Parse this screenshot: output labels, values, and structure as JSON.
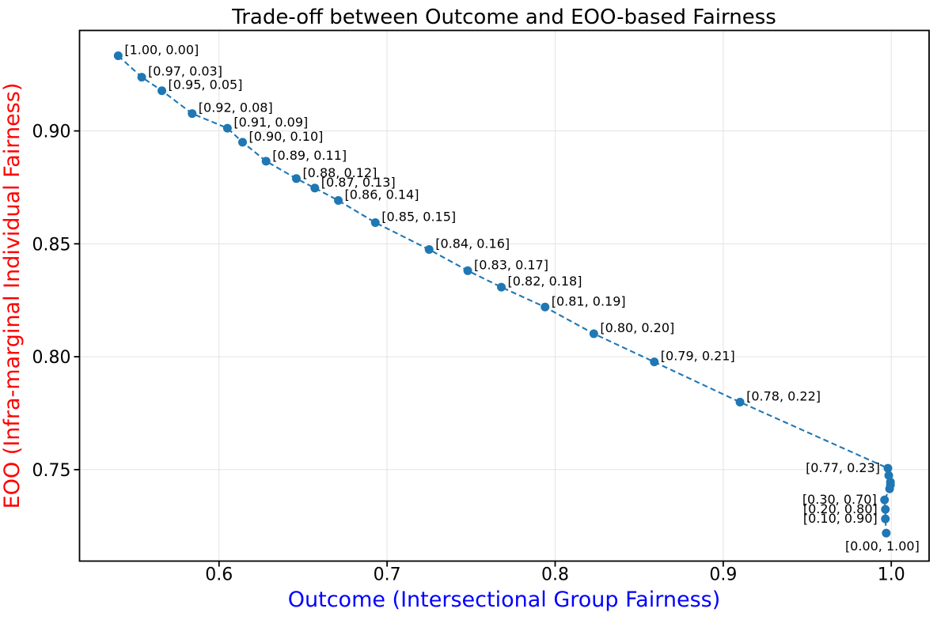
{
  "chart_data": {
    "type": "line",
    "title": "Trade-off between Outcome and EOO-based Fairness",
    "xlabel": "Outcome (Intersectional Group Fairness)",
    "ylabel": "EOO (Infra-marginal Individual Fairness)",
    "line_style": "dashed",
    "marker": "circle",
    "grid": true,
    "legend": "none",
    "xlim": [
      0.517,
      1.0225
    ],
    "ylim": [
      0.7095,
      0.9445
    ],
    "xticks": [
      {
        "value": 0.6,
        "label": "0.6"
      },
      {
        "value": 0.7,
        "label": "0.7"
      },
      {
        "value": 0.8,
        "label": "0.8"
      },
      {
        "value": 0.9,
        "label": "0.9"
      },
      {
        "value": 1.0,
        "label": "1.0"
      }
    ],
    "yticks": [
      {
        "value": 0.75,
        "label": "0.75"
      },
      {
        "value": 0.8,
        "label": "0.80"
      },
      {
        "value": 0.85,
        "label": "0.85"
      },
      {
        "value": 0.9,
        "label": "0.90"
      }
    ],
    "colors": {
      "series": "#1f77b4",
      "title": "#000000",
      "xlabel": "#0000ff",
      "ylabel": "#ff0000",
      "grid": "#e5e5e5",
      "axis": "#000000",
      "tick_labels": "#000000",
      "annotations": "#000000"
    },
    "points": [
      {
        "x": 0.54,
        "y": 0.9333,
        "label": "[1.00, 0.00]",
        "label_side": "right"
      },
      {
        "x": 0.554,
        "y": 0.9238,
        "label": "[0.97, 0.03]",
        "label_side": "right"
      },
      {
        "x": 0.566,
        "y": 0.9178,
        "label": "[0.95, 0.05]",
        "label_side": "right"
      },
      {
        "x": 0.584,
        "y": 0.9077,
        "label": "[0.92, 0.08]",
        "label_side": "right"
      },
      {
        "x": 0.605,
        "y": 0.9012,
        "label": "[0.91, 0.09]",
        "label_side": "right"
      },
      {
        "x": 0.614,
        "y": 0.895,
        "label": "[0.90, 0.10]",
        "label_side": "right"
      },
      {
        "x": 0.628,
        "y": 0.8866,
        "label": "[0.89, 0.11]",
        "label_side": "right"
      },
      {
        "x": 0.646,
        "y": 0.8789,
        "label": "[0.88, 0.12]",
        "label_side": "right"
      },
      {
        "x": 0.657,
        "y": 0.8747,
        "label": "[0.87, 0.13]",
        "label_side": "right"
      },
      {
        "x": 0.671,
        "y": 0.8692,
        "label": "[0.86, 0.14]",
        "label_side": "right"
      },
      {
        "x": 0.693,
        "y": 0.8594,
        "label": "[0.85, 0.15]",
        "label_side": "right"
      },
      {
        "x": 0.725,
        "y": 0.8475,
        "label": "[0.84, 0.16]",
        "label_side": "right"
      },
      {
        "x": 0.748,
        "y": 0.8381,
        "label": "[0.83, 0.17]",
        "label_side": "right"
      },
      {
        "x": 0.768,
        "y": 0.8308,
        "label": "[0.82, 0.18]",
        "label_side": "right"
      },
      {
        "x": 0.794,
        "y": 0.822,
        "label": "[0.81, 0.19]",
        "label_side": "right"
      },
      {
        "x": 0.823,
        "y": 0.8102,
        "label": "[0.80, 0.20]",
        "label_side": "right"
      },
      {
        "x": 0.859,
        "y": 0.7977,
        "label": "[0.79, 0.21]",
        "label_side": "right"
      },
      {
        "x": 0.91,
        "y": 0.7799,
        "label": "[0.78, 0.22]",
        "label_side": "right"
      },
      {
        "x": 0.998,
        "y": 0.7506,
        "label": "[0.77, 0.23]",
        "label_side": "left"
      },
      {
        "x": 0.9985,
        "y": 0.7474,
        "label": "",
        "label_side": "none"
      },
      {
        "x": 0.9995,
        "y": 0.7445,
        "label": "",
        "label_side": "none"
      },
      {
        "x": 0.9995,
        "y": 0.7432,
        "label": "",
        "label_side": "none"
      },
      {
        "x": 0.999,
        "y": 0.7415,
        "label": "",
        "label_side": "none"
      },
      {
        "x": 0.996,
        "y": 0.7366,
        "label": "[0.30, 0.70]",
        "label_side": "left"
      },
      {
        "x": 0.9965,
        "y": 0.7324,
        "label": "[0.20, 0.80]",
        "label_side": "left"
      },
      {
        "x": 0.9965,
        "y": 0.7282,
        "label": "[0.10, 0.90]",
        "label_side": "left"
      },
      {
        "x": 0.997,
        "y": 0.7219,
        "label": "[0.00, 1.00]",
        "label_side": "below"
      }
    ]
  }
}
